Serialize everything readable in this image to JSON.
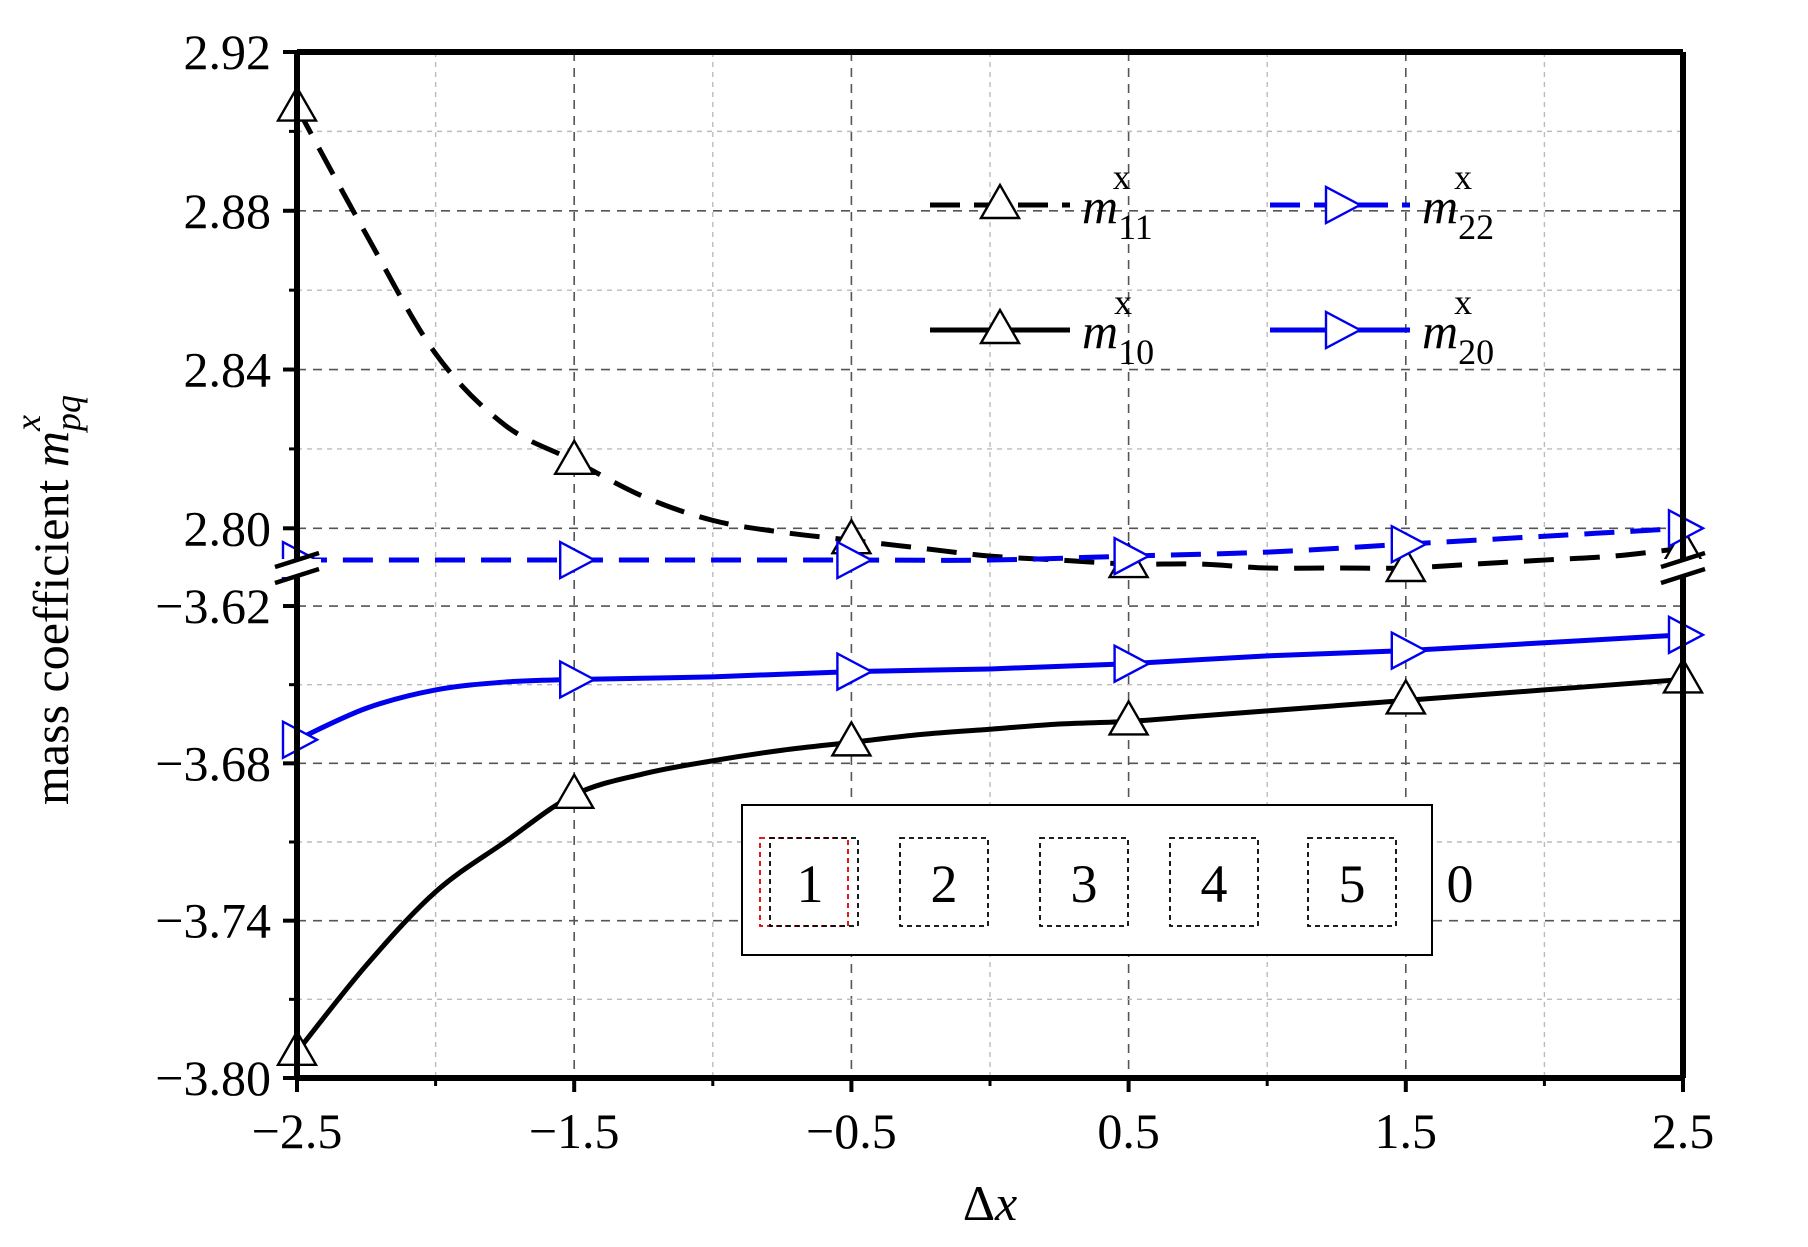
{
  "chart_data": {
    "type": "line",
    "xlabel_symbol": "Δ",
    "xlabel_var": "x",
    "ylabel_text": "mass coefficient ",
    "ylabel_var": "m",
    "ylabel_sub": "pq",
    "ylabel_sup": "x",
    "x_ticks": [
      -2.5,
      -1.5,
      -0.5,
      0.5,
      1.5,
      2.5
    ],
    "x_tick_labels": [
      "−2.5",
      "−1.5",
      "−0.5",
      "0.5",
      "1.5",
      "2.5"
    ],
    "xlim": [
      -2.5,
      2.5
    ],
    "y_break": true,
    "upper_panel": {
      "ylim": [
        2.79,
        2.92
      ],
      "ticks": [
        2.8,
        2.84,
        2.88,
        2.92
      ],
      "tick_labels": [
        "2.80",
        "2.84",
        "2.88",
        "2.92"
      ]
    },
    "lower_panel": {
      "ylim": [
        -3.8,
        -3.6055
      ],
      "ticks": [
        -3.8,
        -3.74,
        -3.68,
        -3.62
      ],
      "tick_labels": [
        "−3.80",
        "−3.74",
        "−3.68",
        "−3.62"
      ]
    },
    "grid": true,
    "series": [
      {
        "name_main": "m",
        "name_sub": "11",
        "name_sup": "x",
        "panel": "upper",
        "color": "#000000",
        "dash": "dashed",
        "marker": "triangle-up",
        "x": [
          -2.5,
          -2.25,
          -2.0,
          -1.75,
          -1.5,
          -1.25,
          -1.0,
          -0.75,
          -0.5,
          -0.25,
          0.0,
          0.25,
          0.5,
          0.75,
          1.0,
          1.25,
          1.5,
          1.75,
          2.0,
          2.25,
          2.5
        ],
        "y": [
          2.906,
          2.874,
          2.844,
          2.826,
          2.817,
          2.808,
          2.802,
          2.799,
          2.797,
          2.795,
          2.793,
          2.792,
          2.791,
          2.791,
          2.79,
          2.79,
          2.79,
          2.791,
          2.792,
          2.793,
          2.795
        ]
      },
      {
        "name_main": "m",
        "name_sub": "22",
        "name_sup": "x",
        "panel": "upper",
        "color": "#0000ee",
        "dash": "dashed",
        "marker": "triangle-right",
        "x": [
          -2.5,
          -1.5,
          -0.5,
          0.0,
          0.5,
          1.0,
          1.5,
          2.0,
          2.5
        ],
        "y": [
          2.792,
          2.792,
          2.792,
          2.792,
          2.793,
          2.794,
          2.796,
          2.798,
          2.8
        ]
      },
      {
        "name_main": "m",
        "name_sub": "10",
        "name_sup": "x",
        "panel": "lower",
        "color": "#000000",
        "dash": "solid",
        "marker": "triangle-up",
        "x": [
          -2.5,
          -2.25,
          -2.0,
          -1.75,
          -1.5,
          -1.25,
          -1.0,
          -0.75,
          -0.5,
          -0.25,
          0.0,
          0.25,
          0.5,
          0.75,
          1.0,
          1.25,
          1.5,
          1.75,
          2.0,
          2.25,
          2.5
        ],
        "y": [
          -3.79,
          -3.757,
          -3.729,
          -3.71,
          -3.692,
          -3.684,
          -3.679,
          -3.675,
          -3.672,
          -3.669,
          -3.667,
          -3.665,
          -3.664,
          -3.662,
          -3.66,
          -3.658,
          -3.656,
          -3.654,
          -3.652,
          -3.65,
          -3.648
        ]
      },
      {
        "name_main": "m",
        "name_sub": "20",
        "name_sup": "x",
        "panel": "lower",
        "color": "#0000ee",
        "dash": "solid",
        "marker": "triangle-right",
        "x": [
          -2.5,
          -2.25,
          -2.0,
          -1.75,
          -1.5,
          -1.0,
          -0.5,
          0.0,
          0.5,
          1.0,
          1.5,
          2.0,
          2.5
        ],
        "y": [
          -3.671,
          -3.659,
          -3.652,
          -3.649,
          -3.648,
          -3.647,
          -3.645,
          -3.644,
          -3.642,
          -3.639,
          -3.637,
          -3.634,
          -3.631
        ]
      }
    ],
    "legend_position": "top-right",
    "inset": {
      "labels": [
        "1",
        "2",
        "3",
        "4",
        "5"
      ],
      "trailing_label": "0",
      "highlighted": "1",
      "highlight_color": "#dd0000"
    }
  }
}
